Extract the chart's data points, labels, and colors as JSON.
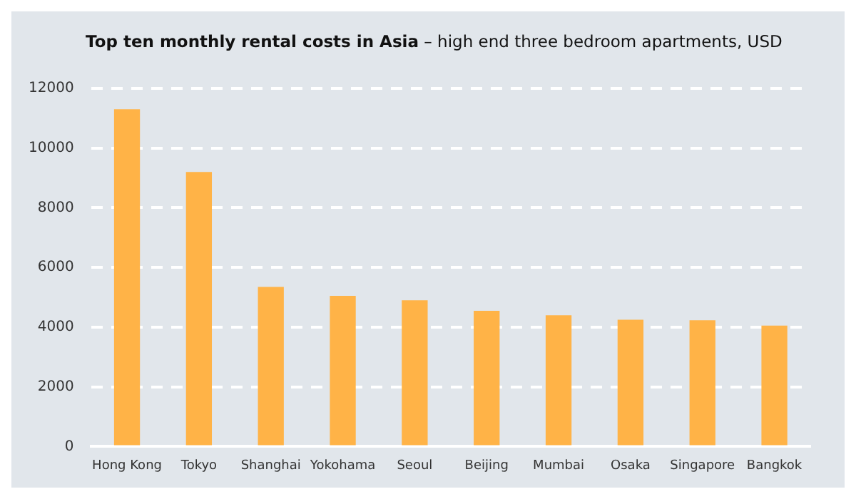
{
  "chart_data": {
    "type": "bar",
    "title": "Top ten monthly rental costs in Asia",
    "subtitle": "– high end three bedroom apartments, USD",
    "categories": [
      "Hong Kong",
      "Tokyo",
      "Shanghai",
      "Yokohama",
      "Seoul",
      "Beijing",
      "Mumbai",
      "Osaka",
      "Singapore",
      "Bangkok"
    ],
    "values": [
      11300,
      9200,
      5350,
      5050,
      4900,
      4550,
      4400,
      4250,
      4230,
      4050
    ],
    "color": "#ffb347",
    "ylim": [
      0,
      12000
    ],
    "yticks": [
      0,
      2000,
      4000,
      6000,
      8000,
      10000,
      12000
    ],
    "grid": "y"
  }
}
